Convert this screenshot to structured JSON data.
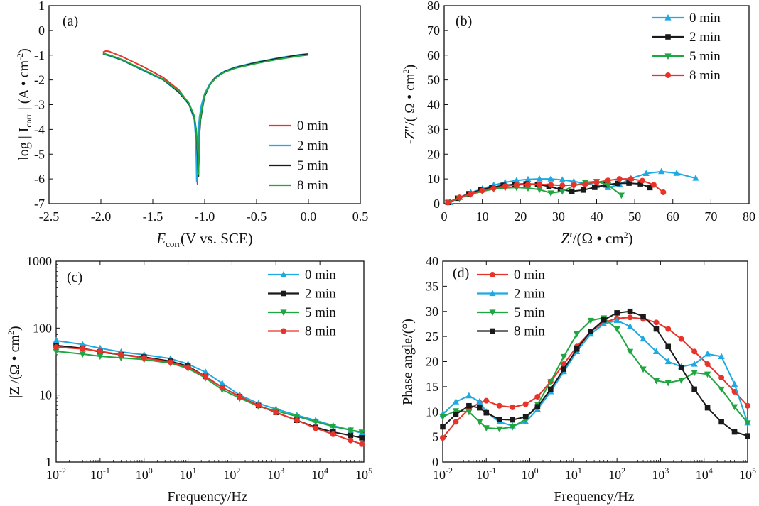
{
  "colors": {
    "red": "#e8332a",
    "blue": "#1fa9e1",
    "black": "#1a1a1a",
    "green": "#20a640"
  },
  "chart_data": [
    {
      "id": "a",
      "type": "line",
      "panel_label": "(a)",
      "xlabel_main": "E",
      "xlabel_sub": "corr",
      "xlabel_rest": "(V vs. SCE)",
      "ylabel_pre": "log | I",
      "ylabel_sub": "corr",
      "ylabel_post": " | (A • cm",
      "ylabel_sup": "-2",
      "ylabel_end": ")",
      "xlim": [
        -2.5,
        0.5
      ],
      "ylim": [
        -7,
        1
      ],
      "xticks": [
        -2.5,
        -2.0,
        -1.5,
        -1.0,
        -0.5,
        0.0,
        0.5
      ],
      "xtick_labels": [
        "-2.5",
        "-2.0",
        "-1.5",
        "-1.0",
        "-0.5",
        "0.0",
        "0.5"
      ],
      "yticks": [
        -7,
        -6,
        -5,
        -4,
        -3,
        -2,
        -1,
        0,
        1
      ],
      "ytick_labels": [
        "-7",
        "-6",
        "-5",
        "-4",
        "-3",
        "-2",
        "-1",
        "0",
        "1"
      ],
      "legend_position": "lower-right",
      "series": [
        {
          "name": "0 min",
          "color": "#e8332a",
          "x": [
            -1.98,
            -1.95,
            -1.92,
            -1.8,
            -1.6,
            -1.4,
            -1.25,
            -1.15,
            -1.1,
            -1.08,
            -1.075,
            -1.07,
            -1.065,
            -1.06,
            -1.05,
            -1.03,
            -1.0,
            -0.95,
            -0.9,
            -0.85,
            -0.8,
            -0.7,
            -0.5,
            -0.3,
            -0.1,
            0.0
          ],
          "y": [
            -0.88,
            -0.83,
            -0.85,
            -1.05,
            -1.45,
            -1.9,
            -2.4,
            -2.95,
            -3.55,
            -4.3,
            -5.5,
            -6.2,
            -5.2,
            -4.1,
            -3.55,
            -3.05,
            -2.6,
            -2.2,
            -1.95,
            -1.78,
            -1.65,
            -1.5,
            -1.3,
            -1.15,
            -1.02,
            -0.97
          ]
        },
        {
          "name": "2 min",
          "color": "#1fa9e1",
          "x": [
            -1.98,
            -1.9,
            -1.8,
            -1.6,
            -1.4,
            -1.25,
            -1.15,
            -1.1,
            -1.085,
            -1.08,
            -1.077,
            -1.07,
            -1.06,
            -1.05,
            -1.03,
            -1.0,
            -0.95,
            -0.9,
            -0.85,
            -0.8,
            -0.7,
            -0.5,
            -0.3,
            -0.1,
            0.0
          ],
          "y": [
            -0.95,
            -1.05,
            -1.2,
            -1.6,
            -2.0,
            -2.5,
            -3.0,
            -3.6,
            -4.4,
            -5.3,
            -6.1,
            -5.0,
            -4.0,
            -3.5,
            -3.0,
            -2.55,
            -2.15,
            -1.9,
            -1.75,
            -1.63,
            -1.48,
            -1.28,
            -1.12,
            -0.99,
            -0.94
          ]
        },
        {
          "name": "5 min",
          "color": "#1a1a1a",
          "x": [
            -1.98,
            -1.9,
            -1.8,
            -1.6,
            -1.4,
            -1.25,
            -1.15,
            -1.1,
            -1.08,
            -1.07,
            -1.06,
            -1.055,
            -1.05,
            -1.04,
            -1.02,
            -1.0,
            -0.95,
            -0.9,
            -0.85,
            -0.8,
            -0.7,
            -0.5,
            -0.3,
            -0.1,
            0.0
          ],
          "y": [
            -0.93,
            -1.03,
            -1.18,
            -1.58,
            -1.98,
            -2.48,
            -2.98,
            -3.5,
            -4.1,
            -4.9,
            -5.9,
            -5.1,
            -4.2,
            -3.6,
            -3.1,
            -2.65,
            -2.2,
            -1.93,
            -1.77,
            -1.65,
            -1.5,
            -1.3,
            -1.14,
            -1.0,
            -0.96
          ]
        },
        {
          "name": "8 min",
          "color": "#20a640",
          "x": [
            -1.98,
            -1.9,
            -1.8,
            -1.6,
            -1.4,
            -1.25,
            -1.15,
            -1.1,
            -1.08,
            -1.065,
            -1.06,
            -1.055,
            -1.05,
            -1.04,
            -1.02,
            -1.0,
            -0.95,
            -0.9,
            -0.85,
            -0.8,
            -0.7,
            -0.5,
            -0.3,
            -0.1,
            0.0
          ],
          "y": [
            -0.92,
            -1.02,
            -1.17,
            -1.57,
            -1.97,
            -2.45,
            -2.95,
            -3.45,
            -4.05,
            -5.0,
            -5.8,
            -5.0,
            -4.0,
            -3.5,
            -3.05,
            -2.6,
            -2.2,
            -1.95,
            -1.78,
            -1.67,
            -1.52,
            -1.33,
            -1.17,
            -1.04,
            -0.99
          ]
        }
      ]
    },
    {
      "id": "b",
      "type": "line",
      "panel_label": "(b)",
      "xlabel_pre": "Z",
      "xlabel_prime": "′",
      "xlabel_post": "/(Ω • cm",
      "xlabel_sup": "2",
      "xlabel_end": ")",
      "ylabel_pre": "-Z",
      "ylabel_prime": "″",
      "ylabel_post": "/( Ω • cm",
      "ylabel_sup": "2",
      "ylabel_end": ")",
      "xlim": [
        0,
        80
      ],
      "ylim": [
        0,
        80
      ],
      "xticks": [
        0,
        10,
        20,
        30,
        40,
        50,
        60,
        70,
        80
      ],
      "xtick_labels": [
        "0",
        "10",
        "20",
        "30",
        "40",
        "50",
        "60",
        "70",
        "80"
      ],
      "yticks": [
        0,
        10,
        20,
        30,
        40,
        50,
        60,
        70,
        80
      ],
      "ytick_labels": [
        "0",
        "10",
        "20",
        "30",
        "40",
        "50",
        "60",
        "70",
        "80"
      ],
      "legend_position": "top-right",
      "series": [
        {
          "name": "0 min",
          "color": "#1fa9e1",
          "marker": "triangle-up",
          "x": [
            1.5,
            4,
            7,
            10,
            13,
            16,
            19,
            22,
            25,
            28,
            31,
            34,
            37,
            40,
            43,
            46,
            49,
            53,
            57,
            61,
            66
          ],
          "y": [
            0.5,
            2.5,
            4.5,
            6.0,
            7.5,
            8.6,
            9.4,
            9.8,
            10.0,
            10.0,
            9.6,
            9.0,
            8.2,
            7.3,
            6.5,
            7.8,
            10.2,
            12.2,
            13.0,
            12.3,
            10.3
          ]
        },
        {
          "name": "2 min",
          "color": "#1a1a1a",
          "marker": "square",
          "x": [
            1.0,
            3.5,
            6.5,
            9.5,
            12.5,
            15.5,
            18.5,
            21.5,
            24.5,
            27.5,
            30.5,
            33.5,
            36.5,
            39.5,
            42.5,
            45.5,
            48.5,
            51.5,
            54
          ],
          "y": [
            0.5,
            2.2,
            4.0,
            5.5,
            6.6,
            7.4,
            7.8,
            8.0,
            7.8,
            7.0,
            5.8,
            5.0,
            5.5,
            6.6,
            7.6,
            8.2,
            8.3,
            8.0,
            6.5
          ]
        },
        {
          "name": "5 min",
          "color": "#20a640",
          "marker": "triangle-down",
          "x": [
            1.0,
            4.0,
            7.0,
            10.0,
            13.0,
            16.0,
            19.0,
            22.0,
            25.0,
            28.0,
            31.0,
            34.0,
            37.0,
            40.0,
            43.0,
            46.5
          ],
          "y": [
            0.4,
            2.2,
            3.8,
            5.0,
            5.9,
            6.4,
            6.5,
            6.3,
            5.7,
            4.3,
            5.0,
            7.2,
            8.6,
            9.0,
            7.5,
            3.4
          ]
        },
        {
          "name": "8 min",
          "color": "#e8332a",
          "marker": "circle",
          "x": [
            1.0,
            4.0,
            7.0,
            10.0,
            13.0,
            16.0,
            19.0,
            22.0,
            25.0,
            28.0,
            31.0,
            34.0,
            37.0,
            40.0,
            43.0,
            46.0,
            49.0,
            52.0,
            55.0,
            57.5
          ],
          "y": [
            0.5,
            2.5,
            4.0,
            5.3,
            6.3,
            7.1,
            7.6,
            7.8,
            7.8,
            7.6,
            7.4,
            7.5,
            7.9,
            8.6,
            9.4,
            10.0,
            10.0,
            9.3,
            7.6,
            4.6
          ]
        }
      ]
    },
    {
      "id": "c",
      "type": "line",
      "panel_label": "(c)",
      "xlabel": "Frequency/Hz",
      "ylabel_pre": "|Z|/(Ω • cm",
      "ylabel_sup": "2",
      "ylabel_end": ")",
      "xscale": "log",
      "yscale": "log",
      "xlim": [
        0.01,
        100000
      ],
      "ylim": [
        1,
        1000
      ],
      "xtick_exponents": [
        -2,
        -1,
        0,
        1,
        2,
        3,
        4,
        5
      ],
      "xtick_base": "10",
      "yticks": [
        1,
        10,
        100,
        1000
      ],
      "ytick_labels": [
        "1",
        "10",
        "100",
        "1000"
      ],
      "legend_position": "top-right",
      "series": [
        {
          "name": "0 min",
          "color": "#1fa9e1",
          "marker": "triangle-up",
          "x": [
            0.01,
            0.04,
            0.1,
            0.3,
            1,
            4,
            10,
            25,
            60,
            150,
            400,
            1000,
            3000,
            8000,
            20000,
            50000,
            90000
          ],
          "y": [
            65,
            57,
            50,
            44,
            40,
            35,
            29,
            22,
            15,
            10,
            7.5,
            6.2,
            5.0,
            4.2,
            3.5,
            3.0,
            2.7
          ]
        },
        {
          "name": "2 min",
          "color": "#1a1a1a",
          "marker": "square",
          "x": [
            0.01,
            0.04,
            0.1,
            0.3,
            1,
            4,
            10,
            25,
            60,
            150,
            400,
            1000,
            3000,
            8000,
            20000,
            50000,
            90000
          ],
          "y": [
            55,
            50,
            44,
            40,
            37,
            32,
            27,
            19,
            13,
            9.5,
            7.0,
            5.5,
            4.2,
            3.3,
            2.8,
            2.5,
            2.3
          ]
        },
        {
          "name": "5 min",
          "color": "#20a640",
          "marker": "triangle-down",
          "x": [
            0.01,
            0.04,
            0.1,
            0.3,
            1,
            4,
            10,
            25,
            60,
            150,
            400,
            1000,
            3000,
            8000,
            20000,
            50000,
            90000
          ],
          "y": [
            45,
            41,
            38,
            36,
            34,
            30,
            25,
            18,
            12,
            9.0,
            6.8,
            5.8,
            4.8,
            4.0,
            3.4,
            3.0,
            2.8
          ]
        },
        {
          "name": "8 min",
          "color": "#e8332a",
          "marker": "circle",
          "x": [
            0.01,
            0.04,
            0.1,
            0.3,
            1,
            4,
            10,
            25,
            60,
            150,
            400,
            1000,
            3000,
            8000,
            20000,
            50000,
            90000
          ],
          "y": [
            52,
            49,
            45,
            40,
            36,
            31,
            26,
            19,
            13,
            9.5,
            7.0,
            5.5,
            4.2,
            3.2,
            2.6,
            2.1,
            1.85
          ]
        }
      ]
    },
    {
      "id": "d",
      "type": "line",
      "panel_label": "(d)",
      "xlabel": "Frequency/Hz",
      "ylabel": "Phase angle/(°)",
      "xscale": "log",
      "xlim": [
        0.01,
        100000
      ],
      "ylim": [
        0,
        40
      ],
      "xtick_exponents": [
        -2,
        -1,
        0,
        1,
        2,
        3,
        4,
        5
      ],
      "xtick_base": "10",
      "yticks": [
        0,
        5,
        10,
        15,
        20,
        25,
        30,
        35,
        40
      ],
      "ytick_labels": [
        "0",
        "5",
        "10",
        "15",
        "20",
        "25",
        "30",
        "35",
        "40"
      ],
      "legend_position": "top-left",
      "series": [
        {
          "name": "0 min",
          "color": "#e8332a",
          "marker": "circle",
          "x": [
            0.01,
            0.02,
            0.04,
            0.07,
            0.1,
            0.2,
            0.4,
            0.8,
            1.5,
            3,
            6,
            12,
            25,
            50,
            100,
            200,
            400,
            800,
            1500,
            3000,
            6000,
            12000,
            25000,
            50000,
            100000
          ],
          "y": [
            4.8,
            8.0,
            10.5,
            11.8,
            12.2,
            11.2,
            10.9,
            11.5,
            13.0,
            16.0,
            19.5,
            23.0,
            26.0,
            27.8,
            28.6,
            28.8,
            28.5,
            27.8,
            26.5,
            24.5,
            22.0,
            19.5,
            16.8,
            14.0,
            11.2
          ]
        },
        {
          "name": "2 min",
          "color": "#1fa9e1",
          "marker": "triangle-up",
          "x": [
            0.01,
            0.02,
            0.04,
            0.07,
            0.1,
            0.2,
            0.4,
            0.8,
            1.5,
            3,
            6,
            12,
            25,
            50,
            100,
            200,
            400,
            800,
            1500,
            3000,
            6000,
            12000,
            25000,
            50000,
            100000
          ],
          "y": [
            9.5,
            12.0,
            13.2,
            12.0,
            10.0,
            8.0,
            7.2,
            8.0,
            10.5,
            14.0,
            18.0,
            22.0,
            25.5,
            27.5,
            28.2,
            27.0,
            24.5,
            22.0,
            20.0,
            19.0,
            19.5,
            21.5,
            21.0,
            15.5,
            7.8
          ]
        },
        {
          "name": "5 min",
          "color": "#20a640",
          "marker": "triangle-down",
          "x": [
            0.01,
            0.02,
            0.04,
            0.07,
            0.1,
            0.2,
            0.4,
            0.8,
            1.5,
            3,
            6,
            12,
            25,
            50,
            100,
            200,
            400,
            800,
            1500,
            3000,
            6000,
            12000,
            25000,
            50000,
            100000
          ],
          "y": [
            9.0,
            10.2,
            10.0,
            8.0,
            6.8,
            6.6,
            7.0,
            8.5,
            11.5,
            16.0,
            21.0,
            25.5,
            28.2,
            28.7,
            26.5,
            22.0,
            18.5,
            16.2,
            15.8,
            16.3,
            17.8,
            17.5,
            14.5,
            11.0,
            7.8
          ]
        },
        {
          "name": "8 min",
          "color": "#1a1a1a",
          "marker": "square",
          "x": [
            0.01,
            0.02,
            0.04,
            0.07,
            0.1,
            0.2,
            0.4,
            0.8,
            1.5,
            3,
            6,
            12,
            25,
            50,
            100,
            200,
            400,
            800,
            1500,
            3000,
            6000,
            12000,
            25000,
            50000,
            100000
          ],
          "y": [
            7.0,
            9.5,
            11.2,
            10.8,
            9.8,
            8.5,
            8.4,
            9.0,
            11.0,
            14.5,
            18.5,
            22.5,
            26.0,
            28.3,
            29.7,
            30.0,
            29.0,
            26.5,
            23.0,
            18.8,
            14.5,
            10.8,
            8.0,
            6.0,
            5.2
          ]
        }
      ]
    }
  ]
}
